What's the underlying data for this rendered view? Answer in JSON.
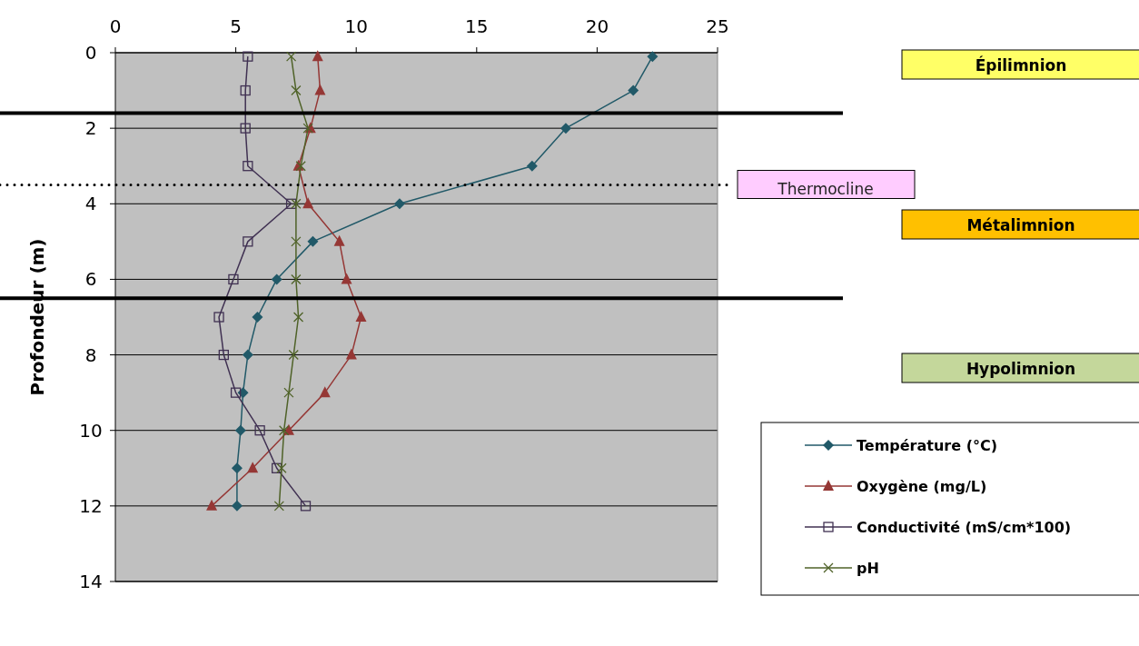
{
  "chart_data": {
    "type": "line",
    "ylabel": "Profondeur (m)",
    "xlim": [
      0,
      25
    ],
    "xticks": [
      0,
      5,
      10,
      15,
      20,
      25
    ],
    "ylim": [
      14,
      0
    ],
    "yticks": [
      0,
      2,
      4,
      6,
      8,
      10,
      12,
      14
    ],
    "grid": "y",
    "legend": "bottom right",
    "line_style": "solid",
    "series": [
      {
        "name": "Température (°C)",
        "color": "#215968",
        "marker": "diamond",
        "x": [
          22.3,
          21.5,
          18.7,
          17.3,
          11.8,
          8.2,
          6.7,
          5.9,
          5.5,
          5.3,
          5.2,
          5.05,
          5.05
        ],
        "values": [
          0.1,
          1,
          2,
          3,
          4,
          5,
          6,
          7,
          8,
          9,
          10,
          11,
          12
        ]
      },
      {
        "name": "Oxygène (mg/L)",
        "color": "#953735",
        "marker": "triangle",
        "x": [
          8.4,
          8.5,
          8.1,
          7.6,
          8.0,
          9.3,
          9.6,
          10.2,
          9.8,
          8.7,
          7.2,
          5.7,
          4.0
        ],
        "values": [
          0.1,
          1,
          2,
          3,
          4,
          5,
          6,
          7,
          8,
          9,
          10,
          11,
          12
        ]
      },
      {
        "name": "Conductivité (mS/cm*100)",
        "color": "#403152",
        "marker": "square",
        "x": [
          5.5,
          5.4,
          5.4,
          5.5,
          7.3,
          5.5,
          4.9,
          4.3,
          4.5,
          5.0,
          6.0,
          6.7,
          7.9
        ],
        "values": [
          0.1,
          1,
          2,
          3,
          4,
          5,
          6,
          7,
          8,
          9,
          10,
          11,
          12
        ]
      },
      {
        "name": "pH",
        "color": "#4f6228",
        "marker": "cross",
        "x": [
          7.3,
          7.5,
          8.0,
          7.7,
          7.5,
          7.5,
          7.5,
          7.6,
          7.4,
          7.2,
          7.0,
          6.9,
          6.8
        ],
        "values": [
          0.1,
          1,
          2,
          3,
          4,
          5,
          6,
          7,
          8,
          9,
          10,
          11,
          12
        ]
      }
    ],
    "ref_lines": [
      {
        "axis": "y",
        "value": 1.6,
        "line_style": "solid",
        "color": "#000000"
      },
      {
        "axis": "y",
        "value": 3.5,
        "line_style": "dotted",
        "color": "#000000",
        "label": "Thermocline"
      },
      {
        "axis": "y",
        "value": 6.5,
        "line_style": "solid",
        "color": "#000000"
      }
    ],
    "annotations": [
      "Épilimnion",
      "Métalimnion",
      "Hypolimnion"
    ]
  }
}
